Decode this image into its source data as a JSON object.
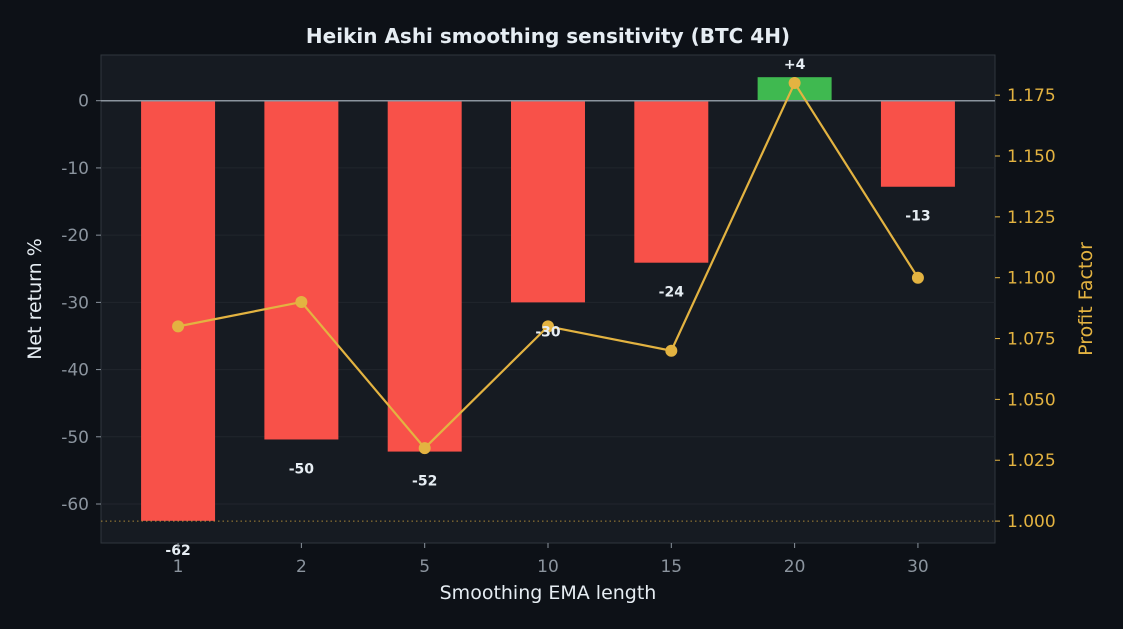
{
  "chart_data": {
    "type": "bar",
    "title": "Heikin Ashi smoothing sensitivity (BTC 4H)",
    "xlabel": "Smoothing EMA length",
    "ylabel": "Net return %",
    "y2label": "Profit Factor",
    "categories": [
      "1",
      "2",
      "5",
      "10",
      "15",
      "20",
      "30"
    ],
    "series": [
      {
        "axis": "left",
        "kind": "bar",
        "values": [
          -62.5,
          -50.4,
          -52.2,
          -30,
          -24.1,
          3.5,
          -12.8
        ],
        "labels": [
          "-62",
          "-50",
          "-52",
          "-30",
          "-24",
          "+4",
          "-13"
        ],
        "colors": [
          "#f85149",
          "#f85149",
          "#f85149",
          "#f85149",
          "#f85149",
          "#3fb950",
          "#f85149"
        ]
      },
      {
        "axis": "right",
        "kind": "line",
        "values": [
          1.08,
          1.09,
          1.03,
          1.08,
          1.07,
          1.18,
          1.1
        ],
        "color": "#e3b341"
      }
    ],
    "ylim": [
      -65.8,
      6.8
    ],
    "yticks": [
      0,
      -10,
      -20,
      -30,
      -40,
      -50,
      -60
    ],
    "y2lim": [
      0.991,
      1.1915
    ],
    "y2ticks": [
      1.0,
      1.025,
      1.05,
      1.075,
      1.1,
      1.125,
      1.15,
      1.175
    ],
    "y2tick_labels": [
      "1.000",
      "1.025",
      "1.050",
      "1.075",
      "1.100",
      "1.125",
      "1.150",
      "1.175"
    ],
    "reference_line_y2": 1.0,
    "grid": true
  }
}
